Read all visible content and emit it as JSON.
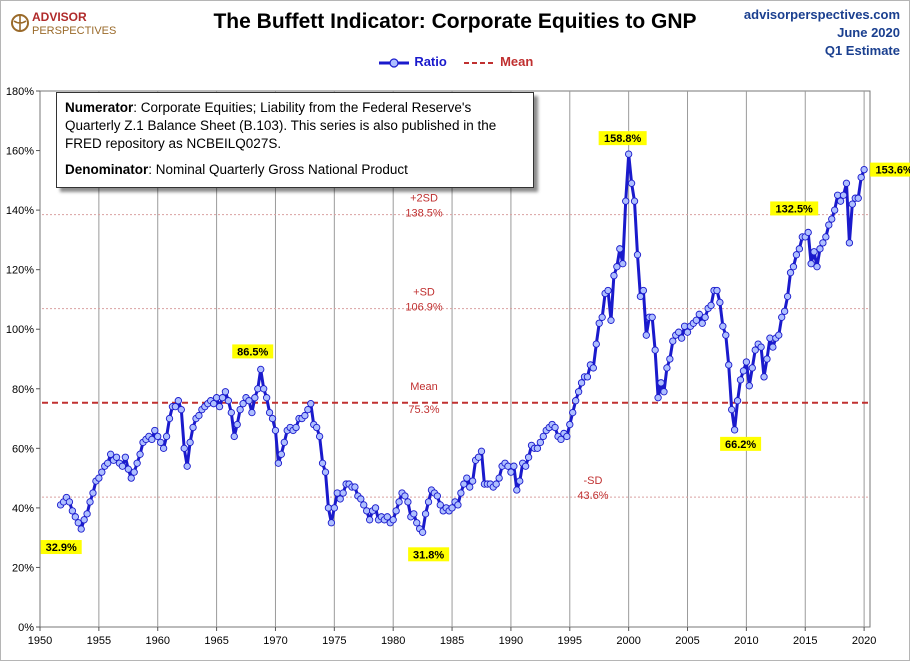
{
  "header": {
    "brand_top": "ADVISOR",
    "brand_bottom": "PERSPECTIVES",
    "site": "advisorperspectives.com",
    "date": "June 2020",
    "estimate": "Q1 Estimate"
  },
  "legend": {
    "ratio_label": "Ratio",
    "mean_label": "Mean"
  },
  "note": {
    "numerator_label": "Numerator",
    "numerator_text": ": Corporate Equities; Liability from the Federal Reserve's Quarterly Z.1 Balance Sheet (B.103). This series is also published in the FRED repository  as NCBEILQ027S.",
    "denominator_label": "Denominator",
    "denominator_text": ": Nominal Quarterly Gross National Product"
  },
  "colors": {
    "line": "#1a1acc",
    "marker_fill": "#aebfff",
    "mean": "#c03030",
    "sd": "#c03030",
    "highlight": "#ffff00"
  },
  "chart_data": {
    "type": "line",
    "title": "The Buffett Indicator: Corporate Equities to GNP",
    "x_ticks": [
      1950,
      1955,
      1960,
      1965,
      1970,
      1975,
      1980,
      1985,
      1990,
      1995,
      2000,
      2005,
      2010,
      2015,
      2020
    ],
    "y_ticks": [
      0,
      20,
      40,
      60,
      80,
      100,
      120,
      140,
      160,
      180
    ],
    "y_tick_labels": [
      "0%",
      "20%",
      "40%",
      "60%",
      "80%",
      "100%",
      "120%",
      "140%",
      "160%",
      "180%"
    ],
    "xlim": [
      1950,
      2020.5
    ],
    "ylim": [
      0,
      180
    ],
    "grid": "vertical lines at x ticks",
    "reference_lines": [
      {
        "name": "+2SD",
        "label": "138.5%",
        "value": 138.5,
        "style": "dotted"
      },
      {
        "name": "+SD",
        "label": "106.9%",
        "value": 106.9,
        "style": "dotted"
      },
      {
        "name": "Mean",
        "label": "75.3%",
        "value": 75.3,
        "style": "dashed"
      },
      {
        "name": "-SD",
        "label": "43.6%",
        "value": 43.6,
        "style": "dotted"
      }
    ],
    "annotations": [
      {
        "label": "32.9%",
        "x": 1953.5,
        "y": 32.9
      },
      {
        "label": "86.5%",
        "x": 1968.75,
        "y": 86.5
      },
      {
        "label": "31.8%",
        "x": 1982.5,
        "y": 31.8
      },
      {
        "label": "158.8%",
        "x": 2000.0,
        "y": 158.8
      },
      {
        "label": "66.2%",
        "x": 2009.0,
        "y": 66.2
      },
      {
        "label": "132.5%",
        "x": 2015.25,
        "y": 132.5
      },
      {
        "label": "153.6%",
        "x": 2020.0,
        "y": 153.6
      }
    ],
    "series": [
      {
        "name": "Ratio",
        "points": [
          [
            1951.75,
            41
          ],
          [
            1952.0,
            42
          ],
          [
            1952.25,
            43.5
          ],
          [
            1952.5,
            42
          ],
          [
            1952.75,
            39
          ],
          [
            1953.0,
            37
          ],
          [
            1953.25,
            35
          ],
          [
            1953.5,
            32.9
          ],
          [
            1953.75,
            36
          ],
          [
            1954.0,
            38
          ],
          [
            1954.25,
            42
          ],
          [
            1954.5,
            45
          ],
          [
            1954.75,
            49
          ],
          [
            1955.0,
            50
          ],
          [
            1955.25,
            52
          ],
          [
            1955.5,
            54
          ],
          [
            1955.75,
            55
          ],
          [
            1956.0,
            58
          ],
          [
            1956.25,
            56
          ],
          [
            1956.5,
            57
          ],
          [
            1956.75,
            55
          ],
          [
            1957.0,
            54
          ],
          [
            1957.25,
            57
          ],
          [
            1957.5,
            53
          ],
          [
            1957.75,
            50
          ],
          [
            1958.0,
            52
          ],
          [
            1958.25,
            55
          ],
          [
            1958.5,
            58
          ],
          [
            1958.75,
            62
          ],
          [
            1959.0,
            63
          ],
          [
            1959.25,
            64
          ],
          [
            1959.5,
            63
          ],
          [
            1959.75,
            66
          ],
          [
            1960.0,
            64
          ],
          [
            1960.25,
            62
          ],
          [
            1960.5,
            60
          ],
          [
            1960.75,
            64
          ],
          [
            1961.0,
            70
          ],
          [
            1961.25,
            74
          ],
          [
            1961.5,
            74
          ],
          [
            1961.75,
            76
          ],
          [
            1962.0,
            73
          ],
          [
            1962.25,
            60
          ],
          [
            1962.5,
            54
          ],
          [
            1962.75,
            62
          ],
          [
            1963.0,
            67
          ],
          [
            1963.25,
            70
          ],
          [
            1963.5,
            71
          ],
          [
            1963.75,
            73
          ],
          [
            1964.0,
            74
          ],
          [
            1964.25,
            75
          ],
          [
            1964.5,
            76
          ],
          [
            1964.75,
            75
          ],
          [
            1965.0,
            77
          ],
          [
            1965.25,
            74
          ],
          [
            1965.5,
            77
          ],
          [
            1965.75,
            79
          ],
          [
            1966.0,
            76
          ],
          [
            1966.25,
            72
          ],
          [
            1966.5,
            64
          ],
          [
            1966.75,
            68
          ],
          [
            1967.0,
            73
          ],
          [
            1967.25,
            75
          ],
          [
            1967.5,
            77
          ],
          [
            1967.75,
            76
          ],
          [
            1968.0,
            72
          ],
          [
            1968.25,
            77
          ],
          [
            1968.5,
            80
          ],
          [
            1968.75,
            86.5
          ],
          [
            1969.0,
            80
          ],
          [
            1969.25,
            77
          ],
          [
            1969.5,
            72
          ],
          [
            1969.75,
            70
          ],
          [
            1970.0,
            66
          ],
          [
            1970.25,
            55
          ],
          [
            1970.5,
            58
          ],
          [
            1970.75,
            62
          ],
          [
            1971.0,
            66
          ],
          [
            1971.25,
            67
          ],
          [
            1971.5,
            66
          ],
          [
            1971.75,
            67
          ],
          [
            1972.0,
            70
          ],
          [
            1972.25,
            70
          ],
          [
            1972.5,
            71
          ],
          [
            1972.75,
            73
          ],
          [
            1973.0,
            75
          ],
          [
            1973.25,
            68
          ],
          [
            1973.5,
            67
          ],
          [
            1973.75,
            64
          ],
          [
            1974.0,
            55
          ],
          [
            1974.25,
            52
          ],
          [
            1974.5,
            40
          ],
          [
            1974.75,
            35
          ],
          [
            1975.0,
            40
          ],
          [
            1975.25,
            45
          ],
          [
            1975.5,
            43
          ],
          [
            1975.75,
            45
          ],
          [
            1976.0,
            48
          ],
          [
            1976.25,
            48
          ],
          [
            1976.5,
            47
          ],
          [
            1976.75,
            47
          ],
          [
            1977.0,
            44
          ],
          [
            1977.25,
            43
          ],
          [
            1977.5,
            41
          ],
          [
            1977.75,
            39
          ],
          [
            1978.0,
            36
          ],
          [
            1978.25,
            39
          ],
          [
            1978.5,
            40
          ],
          [
            1978.75,
            36
          ],
          [
            1979.0,
            37
          ],
          [
            1979.25,
            36
          ],
          [
            1979.5,
            37
          ],
          [
            1979.75,
            35
          ],
          [
            1980.0,
            36
          ],
          [
            1980.25,
            39
          ],
          [
            1980.5,
            42
          ],
          [
            1980.75,
            45
          ],
          [
            1981.0,
            44
          ],
          [
            1981.25,
            42
          ],
          [
            1981.5,
            37
          ],
          [
            1981.75,
            38
          ],
          [
            1982.0,
            35
          ],
          [
            1982.25,
            33
          ],
          [
            1982.5,
            31.8
          ],
          [
            1982.75,
            38
          ],
          [
            1983.0,
            42
          ],
          [
            1983.25,
            46
          ],
          [
            1983.5,
            45
          ],
          [
            1983.75,
            44
          ],
          [
            1984.0,
            41
          ],
          [
            1984.25,
            39
          ],
          [
            1984.5,
            40
          ],
          [
            1984.75,
            39
          ],
          [
            1985.0,
            40
          ],
          [
            1985.25,
            42
          ],
          [
            1985.5,
            41
          ],
          [
            1985.75,
            45
          ],
          [
            1986.0,
            48
          ],
          [
            1986.25,
            50
          ],
          [
            1986.5,
            47
          ],
          [
            1986.75,
            49
          ],
          [
            1987.0,
            56
          ],
          [
            1987.25,
            57
          ],
          [
            1987.5,
            59
          ],
          [
            1987.75,
            48
          ],
          [
            1988.0,
            48
          ],
          [
            1988.25,
            48
          ],
          [
            1988.5,
            47
          ],
          [
            1988.75,
            48
          ],
          [
            1989.0,
            50
          ],
          [
            1989.25,
            54
          ],
          [
            1989.5,
            55
          ],
          [
            1989.75,
            54
          ],
          [
            1990.0,
            52
          ],
          [
            1990.25,
            54
          ],
          [
            1990.5,
            46
          ],
          [
            1990.75,
            49
          ],
          [
            1991.0,
            55
          ],
          [
            1991.25,
            54
          ],
          [
            1991.5,
            57
          ],
          [
            1991.75,
            61
          ],
          [
            1992.0,
            60
          ],
          [
            1992.25,
            60
          ],
          [
            1992.5,
            62
          ],
          [
            1992.75,
            64
          ],
          [
            1993.0,
            66
          ],
          [
            1993.25,
            67
          ],
          [
            1993.5,
            68
          ],
          [
            1993.75,
            67
          ],
          [
            1994.0,
            64
          ],
          [
            1994.25,
            63
          ],
          [
            1994.5,
            65
          ],
          [
            1994.75,
            64
          ],
          [
            1995.0,
            68
          ],
          [
            1995.25,
            72
          ],
          [
            1995.5,
            76
          ],
          [
            1995.75,
            79
          ],
          [
            1996.0,
            82
          ],
          [
            1996.25,
            84
          ],
          [
            1996.5,
            84
          ],
          [
            1996.75,
            88
          ],
          [
            1997.0,
            87
          ],
          [
            1997.25,
            95
          ],
          [
            1997.5,
            102
          ],
          [
            1997.75,
            104
          ],
          [
            1998.0,
            112
          ],
          [
            1998.25,
            113
          ],
          [
            1998.5,
            103
          ],
          [
            1998.75,
            118
          ],
          [
            1999.0,
            121
          ],
          [
            1999.25,
            127
          ],
          [
            1999.5,
            122
          ],
          [
            1999.75,
            143
          ],
          [
            2000.0,
            158.8
          ],
          [
            2000.25,
            149
          ],
          [
            2000.5,
            143
          ],
          [
            2000.75,
            125
          ],
          [
            2001.0,
            111
          ],
          [
            2001.25,
            113
          ],
          [
            2001.5,
            98
          ],
          [
            2001.75,
            104
          ],
          [
            2002.0,
            104
          ],
          [
            2002.25,
            93
          ],
          [
            2002.5,
            77
          ],
          [
            2002.75,
            82
          ],
          [
            2003.0,
            79
          ],
          [
            2003.25,
            87
          ],
          [
            2003.5,
            90
          ],
          [
            2003.75,
            96
          ],
          [
            2004.0,
            98
          ],
          [
            2004.25,
            99
          ],
          [
            2004.5,
            97
          ],
          [
            2004.75,
            101
          ],
          [
            2005.0,
            99
          ],
          [
            2005.25,
            101
          ],
          [
            2005.5,
            102
          ],
          [
            2005.75,
            103
          ],
          [
            2006.0,
            105
          ],
          [
            2006.25,
            102
          ],
          [
            2006.5,
            104
          ],
          [
            2006.75,
            107
          ],
          [
            2007.0,
            108
          ],
          [
            2007.25,
            113
          ],
          [
            2007.5,
            113
          ],
          [
            2007.75,
            109
          ],
          [
            2008.0,
            101
          ],
          [
            2008.25,
            98
          ],
          [
            2008.5,
            88
          ],
          [
            2008.75,
            73
          ],
          [
            2009.0,
            66.2
          ],
          [
            2009.25,
            76
          ],
          [
            2009.5,
            83
          ],
          [
            2009.75,
            86
          ],
          [
            2010.0,
            89
          ],
          [
            2010.25,
            81
          ],
          [
            2010.5,
            87
          ],
          [
            2010.75,
            93
          ],
          [
            2011.0,
            95
          ],
          [
            2011.25,
            94
          ],
          [
            2011.5,
            84
          ],
          [
            2011.75,
            90
          ],
          [
            2012.0,
            97
          ],
          [
            2012.25,
            94
          ],
          [
            2012.5,
            97
          ],
          [
            2012.75,
            98
          ],
          [
            2013.0,
            104
          ],
          [
            2013.25,
            106
          ],
          [
            2013.5,
            111
          ],
          [
            2013.75,
            119
          ],
          [
            2014.0,
            121
          ],
          [
            2014.25,
            125
          ],
          [
            2014.5,
            127
          ],
          [
            2014.75,
            131
          ],
          [
            2015.0,
            131
          ],
          [
            2015.25,
            132.5
          ],
          [
            2015.5,
            122
          ],
          [
            2015.75,
            126
          ],
          [
            2016.0,
            121
          ],
          [
            2016.25,
            127
          ],
          [
            2016.5,
            129
          ],
          [
            2016.75,
            131
          ],
          [
            2017.0,
            135
          ],
          [
            2017.25,
            137
          ],
          [
            2017.5,
            140
          ],
          [
            2017.75,
            145
          ],
          [
            2018.0,
            143
          ],
          [
            2018.25,
            145
          ],
          [
            2018.5,
            149
          ],
          [
            2018.75,
            129
          ],
          [
            2019.0,
            142
          ],
          [
            2019.25,
            144
          ],
          [
            2019.5,
            144
          ],
          [
            2019.75,
            151
          ],
          [
            2020.0,
            153.6
          ]
        ]
      }
    ]
  }
}
